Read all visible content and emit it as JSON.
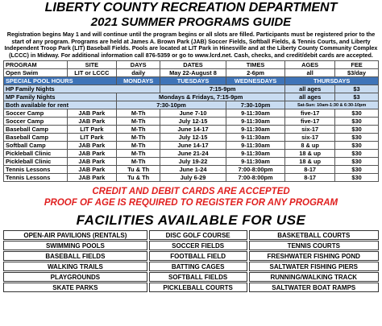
{
  "header": {
    "title": "LIBERTY COUNTY RECREATION DEPARTMENT",
    "subtitle": "2021 SUMMER PROGRAMS GUIDE",
    "intro": "Registration begins May 1 and will continue until the program begins or all slots are filled. Participants must be registered prior to the start of any program. Programs are held at James A. Brown Park (JAB) Soccer Fields, Softball Fields, & Tennis Courts, and Liberty Independent Troop Park (LIT) Baseball Fields. Pools are located at LIT Park in Hinesville and at the Liberty County Community Complex (LCCC) in Midway.",
    "contact": "For additional information call 876-5359 or go to www.lcrd.net. Cash, checks, and credit/debit cards are accepted."
  },
  "table": {
    "columns": [
      "PROGRAM",
      "SITE",
      "DAYS",
      "DATES",
      "TIMES",
      "AGES",
      "FEE"
    ],
    "open_swim": [
      "Open Swim",
      "LIT or LCCC",
      "daily",
      "May 22-August 8",
      "2-6pm",
      "all",
      "$3/day"
    ],
    "special": {
      "header": [
        "SPECIAL POOL HOURS",
        "MONDAYS",
        "TUESDAYS",
        "WEDNESDAYS",
        "THURSDAYS"
      ],
      "hp": {
        "name": "HP Family Nights",
        "time": "7:15-9pm",
        "ages": "all ages",
        "fee": "$3"
      },
      "mp": {
        "name": "MP Family Nights",
        "time": "Mondays & Fridays, 7:15-9pm",
        "ages": "all ages",
        "fee": "$3"
      },
      "rent": {
        "name": "Both available for rent",
        "tuesday": "7:30-10pm",
        "thursday": "7:30-10pm",
        "weekend": "Sat-Sun: 10am-1:30 & 6:30-10pm"
      }
    },
    "rows": [
      [
        "Soccer Camp",
        "JAB Park",
        "M-Th",
        "June 7-10",
        "9-11:30am",
        "five-17",
        "$30"
      ],
      [
        "Soccer Camp",
        "JAB Park",
        "M-Th",
        "July 12-15",
        "9-11:30am",
        "five-17",
        "$30"
      ],
      [
        "Baseball Camp",
        "LIT Park",
        "M-Th",
        "June 14-17",
        "9-11:30am",
        "six-17",
        "$30"
      ],
      [
        "Baseball Camp",
        "LIT Park",
        "M-Th",
        "July 12-15",
        "9-11:30am",
        "six-17",
        "$30"
      ],
      [
        "Softball Camp",
        "JAB Park",
        "M-Th",
        "June 14-17",
        "9-11:30am",
        "8 & up",
        "$30"
      ],
      [
        "Pickleball Clinic",
        "JAB Park",
        "M-Th",
        "June 21-24",
        "9-11:30am",
        "18 & up",
        "$30"
      ],
      [
        "Pickleball Clinic",
        "JAB Park",
        "M-Th",
        "July 19-22",
        "9-11:30am",
        "18 & up",
        "$30"
      ],
      [
        "Tennis Lessons",
        "JAB Park",
        "Tu & Th",
        "June 1-24",
        "7:00-8:00pm",
        "8-17",
        "$30"
      ],
      [
        "Tennis Lessons",
        "JAB Park",
        "Tu & Th",
        "July 6-29",
        "7:00-8:00pm",
        "8-17",
        "$30"
      ]
    ]
  },
  "notices": [
    "CREDIT AND DEBIT CARDS ARE ACCEPTED",
    "PROOF OF AGE IS REQUIRED TO REGISTER FOR ANY PROGRAM"
  ],
  "facilities": {
    "title": "FACILITIES AVAILABLE FOR USE",
    "rows": [
      [
        "OPEN-AIR PAVILIONS (RENTALS)",
        "DISC GOLF COURSE",
        "BASKETBALL COURTS"
      ],
      [
        "SWIMMING POOLS",
        "SOCCER FIELDS",
        "TENNIS COURTS"
      ],
      [
        "BASEBALL FIELDS",
        "FOOTBALL FIELD",
        "FRESHWATER FISHING POND"
      ],
      [
        "WALKING TRAILS",
        "BATTING CAGES",
        "SALTWATER FISHING PIERS"
      ],
      [
        "PLAYGROUNDS",
        "SOFTBALL FIELDS",
        "RUNNING/WALKING TRACK"
      ],
      [
        "SKATE PARKS",
        "PICKLEBALL COURTS",
        "SALTWATER BOAT RAMPS"
      ]
    ]
  }
}
